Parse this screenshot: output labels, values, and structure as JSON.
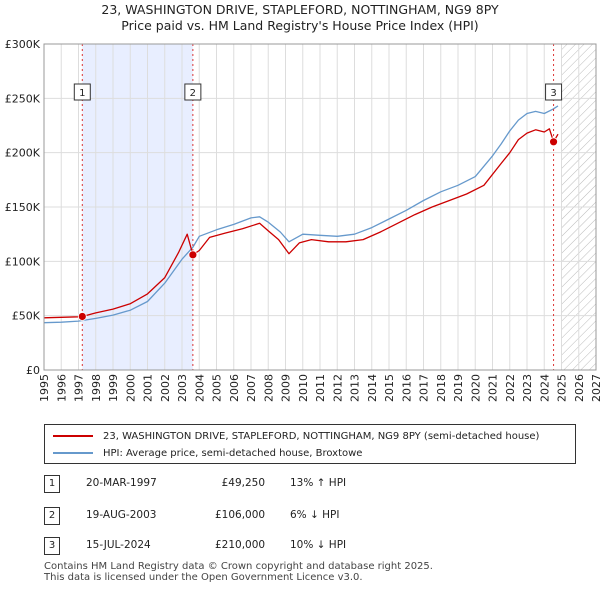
{
  "title_line1": "23, WASHINGTON DRIVE, STAPLEFORD, NOTTINGHAM, NG9 8PY",
  "title_line2": "Price paid vs. HM Land Registry's House Price Index (HPI)",
  "colors": {
    "property": "#cc0000",
    "hpi": "#6699cc",
    "shade": "#e8eeff"
  },
  "chart_data": {
    "type": "line",
    "xlim": [
      1995,
      2027
    ],
    "ylim": [
      0,
      300000
    ],
    "x_ticks": [
      "1995",
      "1996",
      "1997",
      "1998",
      "1999",
      "2000",
      "2001",
      "2002",
      "2003",
      "2004",
      "2005",
      "2006",
      "2007",
      "2008",
      "2009",
      "2010",
      "2011",
      "2012",
      "2013",
      "2014",
      "2015",
      "2016",
      "2017",
      "2018",
      "2019",
      "2020",
      "2021",
      "2022",
      "2023",
      "2024",
      "2025",
      "2026",
      "2027"
    ],
    "y_ticks": [
      {
        "value": 0,
        "label": "£0"
      },
      {
        "value": 50000,
        "label": "£50K"
      },
      {
        "value": 100000,
        "label": "£100K"
      },
      {
        "value": 150000,
        "label": "£150K"
      },
      {
        "value": 200000,
        "label": "£200K"
      },
      {
        "value": 250000,
        "label": "£250K"
      },
      {
        "value": 300000,
        "label": "£300K"
      }
    ],
    "shaded_period": [
      1997.22,
      2003.63
    ],
    "hatched_from": 2025.0,
    "series": [
      {
        "name": "23, WASHINGTON DRIVE, STAPLEFORD, NOTTINGHAM, NG9 8PY (semi-detached house)",
        "points": [
          [
            1995.0,
            48000
          ],
          [
            1996.0,
            48500
          ],
          [
            1997.0,
            49000
          ],
          [
            1997.22,
            49250
          ],
          [
            1998.0,
            52500
          ],
          [
            1999.0,
            56000
          ],
          [
            2000.0,
            61000
          ],
          [
            2001.0,
            70000
          ],
          [
            2002.0,
            85000
          ],
          [
            2002.8,
            108000
          ],
          [
            2003.3,
            125000
          ],
          [
            2003.63,
            106000
          ],
          [
            2004.0,
            110000
          ],
          [
            2004.6,
            122000
          ],
          [
            2005.5,
            126000
          ],
          [
            2006.5,
            130000
          ],
          [
            2007.5,
            135000
          ],
          [
            2008.0,
            128000
          ],
          [
            2008.6,
            120000
          ],
          [
            2009.2,
            107000
          ],
          [
            2009.8,
            117000
          ],
          [
            2010.5,
            120000
          ],
          [
            2011.5,
            118000
          ],
          [
            2012.5,
            118000
          ],
          [
            2013.5,
            120000
          ],
          [
            2014.5,
            127000
          ],
          [
            2015.5,
            135000
          ],
          [
            2016.5,
            143000
          ],
          [
            2017.5,
            150000
          ],
          [
            2018.5,
            156000
          ],
          [
            2019.5,
            162000
          ],
          [
            2020.5,
            170000
          ],
          [
            2021.5,
            190000
          ],
          [
            2022.0,
            200000
          ],
          [
            2022.5,
            212000
          ],
          [
            2023.0,
            218000
          ],
          [
            2023.5,
            221000
          ],
          [
            2024.0,
            219000
          ],
          [
            2024.3,
            222000
          ],
          [
            2024.54,
            210000
          ],
          [
            2024.8,
            217000
          ]
        ]
      },
      {
        "name": "HPI: Average price, semi-detached house, Broxtowe",
        "points": [
          [
            1995.0,
            43500
          ],
          [
            1996.0,
            44000
          ],
          [
            1997.0,
            45000
          ],
          [
            1998.0,
            47500
          ],
          [
            1999.0,
            50500
          ],
          [
            2000.0,
            55000
          ],
          [
            2001.0,
            63000
          ],
          [
            2002.0,
            80000
          ],
          [
            2003.0,
            102000
          ],
          [
            2003.63,
            113000
          ],
          [
            2004.0,
            123000
          ],
          [
            2005.0,
            129000
          ],
          [
            2006.0,
            134000
          ],
          [
            2007.0,
            140000
          ],
          [
            2007.5,
            141000
          ],
          [
            2008.0,
            136000
          ],
          [
            2008.7,
            127000
          ],
          [
            2009.2,
            118000
          ],
          [
            2010.0,
            125000
          ],
          [
            2011.0,
            124000
          ],
          [
            2012.0,
            123000
          ],
          [
            2013.0,
            125000
          ],
          [
            2014.0,
            131000
          ],
          [
            2015.0,
            139000
          ],
          [
            2016.0,
            147000
          ],
          [
            2017.0,
            156000
          ],
          [
            2018.0,
            164000
          ],
          [
            2019.0,
            170000
          ],
          [
            2020.0,
            178000
          ],
          [
            2021.0,
            197000
          ],
          [
            2021.5,
            208000
          ],
          [
            2022.0,
            220000
          ],
          [
            2022.5,
            230000
          ],
          [
            2023.0,
            236000
          ],
          [
            2023.5,
            238000
          ],
          [
            2024.0,
            236000
          ],
          [
            2024.5,
            240000
          ],
          [
            2024.8,
            243000
          ]
        ]
      }
    ],
    "sales": [
      {
        "label": "1",
        "x": 1997.22,
        "y": 49250
      },
      {
        "label": "2",
        "x": 2003.63,
        "y": 106000
      },
      {
        "label": "3",
        "x": 2024.54,
        "y": 210000
      }
    ]
  },
  "legend": {
    "property": "23, WASHINGTON DRIVE, STAPLEFORD, NOTTINGHAM, NG9 8PY (semi-detached house)",
    "hpi": "HPI: Average price, semi-detached house, Broxtowe"
  },
  "transactions": [
    {
      "num": "1",
      "date": "20-MAR-1997",
      "price": "£49,250",
      "hpi": "13% ↑ HPI"
    },
    {
      "num": "2",
      "date": "19-AUG-2003",
      "price": "£106,000",
      "hpi": "6% ↓ HPI"
    },
    {
      "num": "3",
      "date": "15-JUL-2024",
      "price": "£210,000",
      "hpi": "10% ↓ HPI"
    }
  ],
  "footer": {
    "line1": "Contains HM Land Registry data © Crown copyright and database right 2025.",
    "line2": "This data is licensed under the Open Government Licence v3.0."
  }
}
